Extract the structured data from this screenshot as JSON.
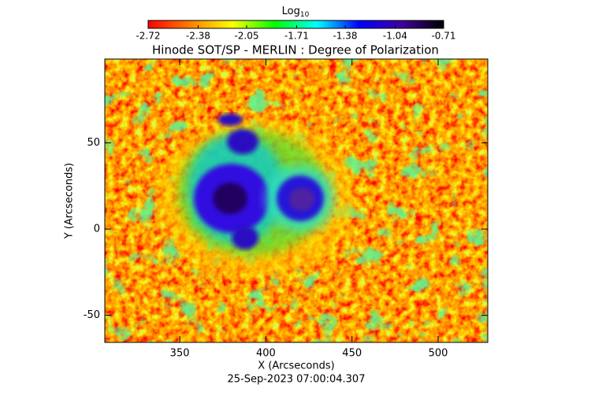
{
  "chart_data": {
    "type": "image",
    "title": "Hinode SOT/SP - MERLIN : Degree of Polarization",
    "x_label": "X (Arcseconds)",
    "y_label": "Y (Arcseconds)",
    "date": "25-Sep-2023 07:00:04.307",
    "colorbar_label": {
      "base": "Log",
      "subscript": "10"
    },
    "colorbar_lim": [
      -2.72,
      -0.71
    ],
    "colorbar_ticks": [
      -2.72,
      -2.38,
      -2.05,
      -1.71,
      -1.38,
      -1.04,
      -0.71
    ],
    "colormap": [
      "#ff0000",
      "#ff8000",
      "#ffff00",
      "#00ff00",
      "#00ffff",
      "#0000ff",
      "#4000a0",
      "#000000"
    ],
    "xlim": [
      306.5,
      528.8
    ],
    "xticks": [
      350,
      400,
      450,
      500
    ],
    "ylim": [
      -65.7,
      98.6
    ],
    "yticks": [
      -50,
      0,
      50
    ]
  }
}
